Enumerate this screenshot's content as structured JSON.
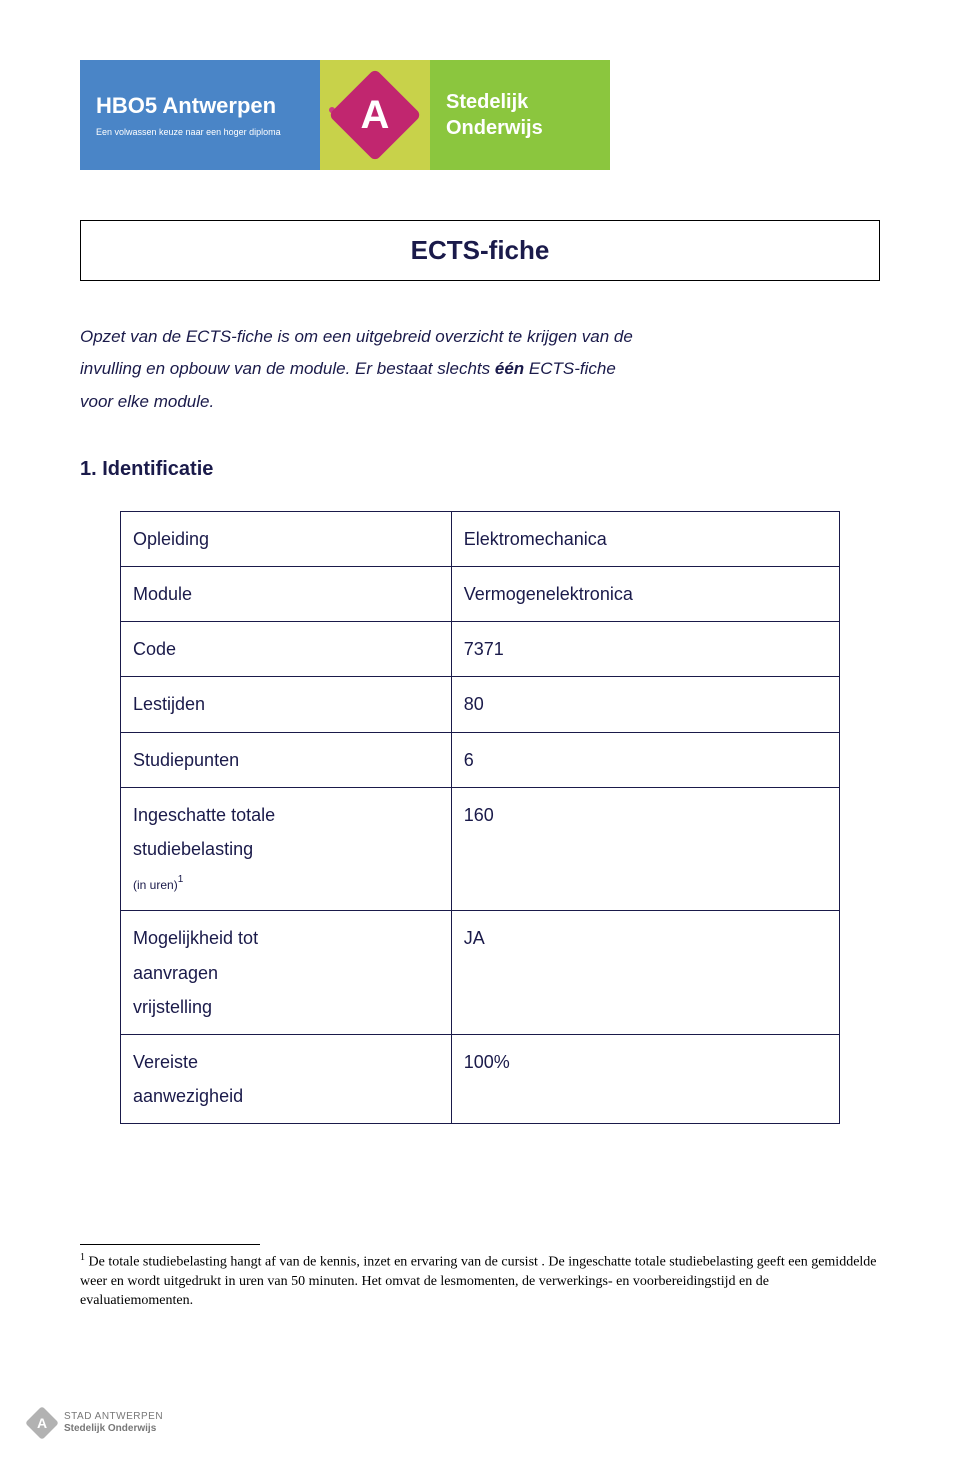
{
  "banner": {
    "hbo5_title": "HBO5 Antwerpen",
    "hbo5_sub": "Een volwassen keuze naar een hoger diploma",
    "a_letter": "A",
    "stedelijk_1": "Stedelijk",
    "stedelijk_2": "Onderwijs",
    "blue_bg": "#4a85c7",
    "a_bg": "#c8d24a",
    "a_badge": "#c1266f",
    "green_bg": "#8bc63e"
  },
  "title": "ECTS-fiche",
  "intro": {
    "line1a": "Opzet van de ECTS-fiche is om een uitgebreid overzicht te krijgen van de",
    "line1b": "invulling en opbouw van de module. Er bestaat slechts ",
    "bold": "één",
    "line1c": " ECTS-fiche",
    "line2": "voor elke module."
  },
  "section1_heading": "1. Identificatie",
  "table": {
    "rows": [
      {
        "label": "Opleiding",
        "value": "Elektromechanica"
      },
      {
        "label": "Module",
        "value": "Vermogenelektronica"
      },
      {
        "label": "Code",
        "value": "7371"
      },
      {
        "label": "Lestijden",
        "value": "80"
      },
      {
        "label": "Studiepunten",
        "value": "6"
      },
      {
        "label_l1": "Ingeschatte totale",
        "label_l2": "studiebelasting",
        "label_l3": "(in uren)",
        "sup": "1",
        "value": "160"
      },
      {
        "label_l1": "Mogelijkheid tot",
        "label_l2": "aanvragen",
        "label_l3": "vrijstelling",
        "value": "JA"
      },
      {
        "label_l1": "Vereiste",
        "label_l2": "aanwezigheid",
        "value": "100%"
      }
    ]
  },
  "footnote": {
    "num": "1",
    "text": " De totale studiebelasting hangt af van de kennis, inzet en ervaring van de cursist . De ingeschatte totale studiebelasting geeft een gemiddelde weer en wordt uitgedrukt in uren van 50 minuten. Het omvat de lesmomenten, de verwerkings- en voorbereidingstijd en de evaluatiemomenten."
  },
  "footer": {
    "badge": "A",
    "l1": "STAD ANTWERPEN",
    "l2": "Stedelijk Onderwijs"
  }
}
